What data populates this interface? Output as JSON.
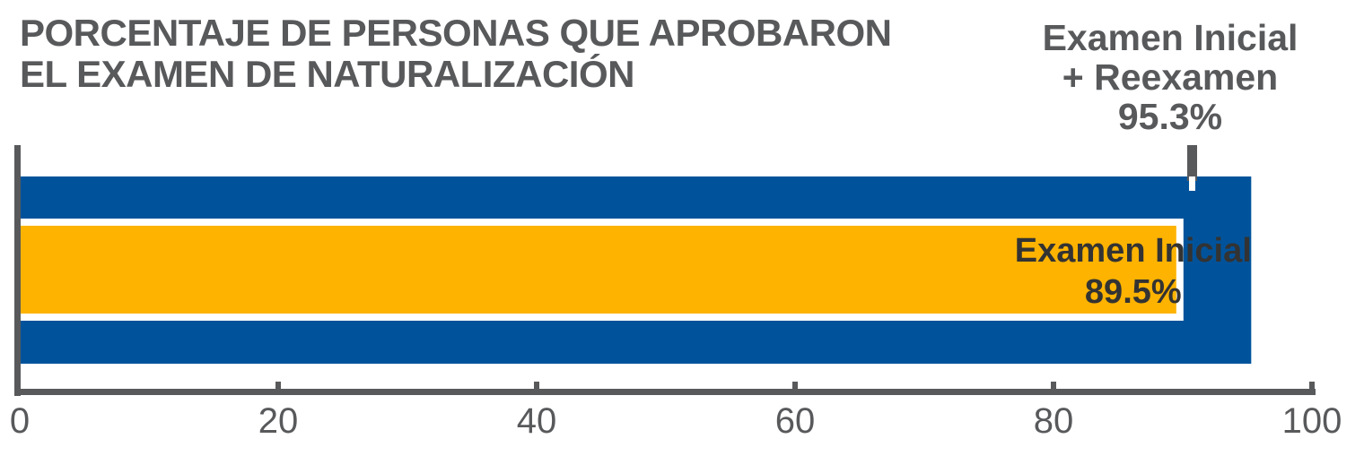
{
  "title": [
    "PORCENTAJE DE PERSONAS QUE APROBARON",
    "EL EXAMEN DE NATURALIZACIÓN"
  ],
  "colors": {
    "outer_bar": "#00539b",
    "inner_bar": "#fdb300",
    "axis": "#58595b",
    "text": "#58595b"
  },
  "chart_data": {
    "type": "bar",
    "orientation": "horizontal",
    "title": "PORCENTAJE DE PERSONAS QUE APROBARON EL EXAMEN DE NATURALIZACIÓN",
    "series": [
      {
        "name": "Examen Inicial + Reexamen",
        "value": 95.3,
        "label": "95.3%",
        "color": "#00539b"
      },
      {
        "name": "Examen Inicial",
        "value": 89.5,
        "label": "89.5%",
        "color": "#fdb300"
      }
    ],
    "xlim": [
      0,
      100
    ],
    "xticks": [
      0,
      20,
      40,
      60,
      80,
      100
    ],
    "xlabel": "",
    "ylabel": "",
    "grid": false
  }
}
